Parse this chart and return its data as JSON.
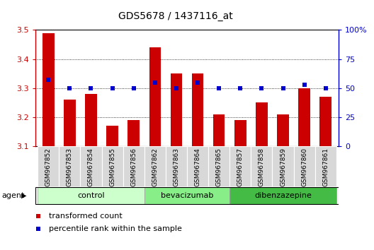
{
  "title": "GDS5678 / 1437116_at",
  "samples": [
    "GSM967852",
    "GSM967853",
    "GSM967854",
    "GSM967855",
    "GSM967856",
    "GSM967862",
    "GSM967863",
    "GSM967864",
    "GSM967865",
    "GSM967857",
    "GSM967858",
    "GSM967859",
    "GSM967860",
    "GSM967861"
  ],
  "bar_values": [
    3.49,
    3.26,
    3.28,
    3.17,
    3.19,
    3.44,
    3.35,
    3.35,
    3.21,
    3.19,
    3.25,
    3.21,
    3.3,
    3.27
  ],
  "percentile_values": [
    57,
    50,
    50,
    50,
    50,
    55,
    50,
    55,
    50,
    50,
    50,
    50,
    53,
    50
  ],
  "bar_color": "#cc0000",
  "percentile_color": "#0000cc",
  "ylim_left": [
    3.1,
    3.5
  ],
  "ylim_right": [
    0,
    100
  ],
  "yticks_left": [
    3.1,
    3.2,
    3.3,
    3.4,
    3.5
  ],
  "yticks_right": [
    0,
    25,
    50,
    75,
    100
  ],
  "ytick_labels_right": [
    "0",
    "25",
    "50",
    "75",
    "100%"
  ],
  "groups": [
    {
      "label": "control",
      "start": 0,
      "end": 5,
      "color": "#ccffcc"
    },
    {
      "label": "bevacizumab",
      "start": 5,
      "end": 9,
      "color": "#88ee88"
    },
    {
      "label": "dibenzazepine",
      "start": 9,
      "end": 14,
      "color": "#44bb44"
    }
  ],
  "agent_label": "agent",
  "legend_bar_label": "transformed count",
  "legend_pct_label": "percentile rank within the sample",
  "bar_width": 0.55,
  "baseline": 3.1,
  "background_color": "#ffffff"
}
